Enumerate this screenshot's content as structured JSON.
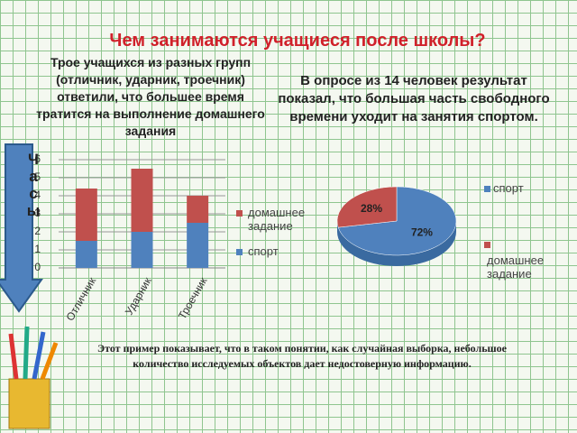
{
  "title": "Чем занимаются учащиеся после школы?",
  "left_text": "Трое учащихся из разных групп (отличник, ударник, троечник) ответили, что большее время тратится на выполнение домашнего задания",
  "right_text": "В опросе из 14 человек результат показал, что большая часть свободного времени уходит на занятия спортом.",
  "footer_text": "Этот пример показывает, что в таком понятии, как случайная выборка, небольшое количество исследуемых объектов дает недостоверную информацию.",
  "chart_data": [
    {
      "type": "bar",
      "stacked": true,
      "y_label": "Часы",
      "categories": [
        "Отличник",
        "Ударник",
        "Троечник"
      ],
      "series": [
        {
          "name": "спорт",
          "color": "#4f81bd",
          "values": [
            1.5,
            2,
            2.5
          ]
        },
        {
          "name": "домашнее задание",
          "color": "#c0504d",
          "values": [
            2.9,
            3.5,
            1.5
          ]
        }
      ],
      "ylim": [
        0,
        6
      ],
      "yticks": [
        0,
        1,
        2,
        3,
        4,
        5,
        6
      ],
      "grid": true
    },
    {
      "type": "pie",
      "categories": [
        "спорт",
        "домашнее задание"
      ],
      "values": [
        72,
        28
      ],
      "value_labels": [
        "72%",
        "28%"
      ],
      "colors": [
        "#4f81bd",
        "#c0504d"
      ]
    }
  ]
}
